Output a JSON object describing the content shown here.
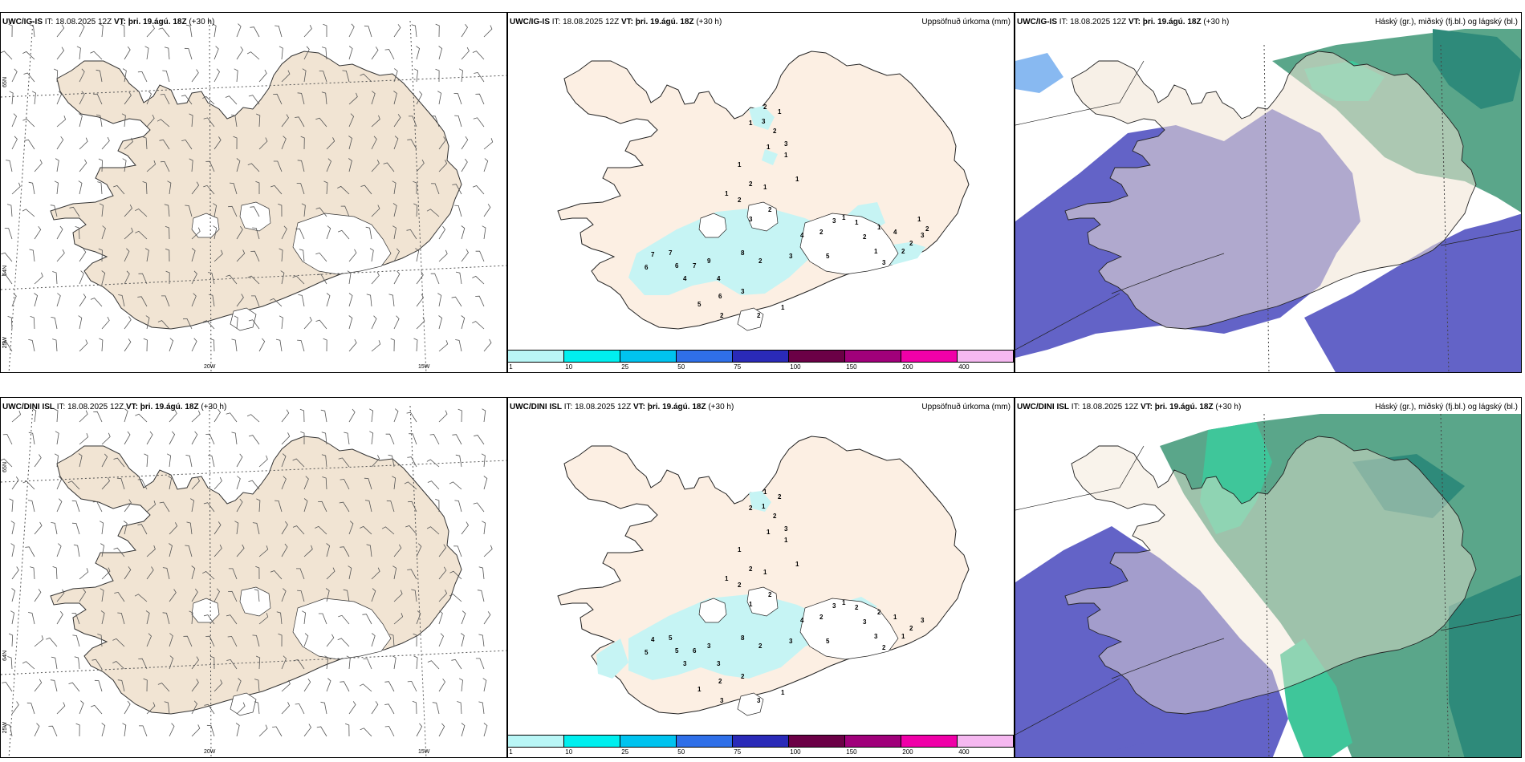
{
  "colors": {
    "land": "#f1e4d3",
    "land_precip": "#fcefe3",
    "precip_light": "#c6f4f4",
    "sea": "#ffffff",
    "cloud_high": "#3fc69a",
    "cloud_mid": "#5aa68a",
    "cloud_low": "#6363c7",
    "cloud_lowest": "#4848b8"
  },
  "rows": [
    {
      "model": "UWC/IG-IS",
      "it": "IT: 18.08.2025 12Z",
      "vt_label": "VT:",
      "vt": "þri. 19.ágú. 18Z",
      "lead": "(+30 h)",
      "precip_numbers": [
        "2",
        "1",
        "3",
        "1",
        "2",
        "1",
        "3",
        "1",
        "1",
        "1",
        "2",
        "1",
        "2",
        "3",
        "2",
        "1",
        "7",
        "6",
        "7",
        "9",
        "8",
        "2",
        "3",
        "4",
        "2",
        "3",
        "1",
        "5",
        "7",
        "6",
        "4",
        "4",
        "6",
        "5",
        "2",
        "3",
        "1",
        "2",
        "1",
        "4",
        "1",
        "2",
        "1",
        "3",
        "2",
        "2",
        "3",
        "1",
        "2"
      ]
    },
    {
      "model": "UWC/DINI ISL",
      "it": "IT: 18.08.2025 12Z",
      "vt_label": "VT:",
      "vt": "þri. 19.ágú. 18Z",
      "lead": "(+30 h)",
      "precip_numbers": [
        "1",
        "2",
        "1",
        "2",
        "2",
        "1",
        "3",
        "1",
        "1",
        "1",
        "2",
        "1",
        "2",
        "1",
        "2",
        "1",
        "5",
        "5",
        "6",
        "3",
        "8",
        "2",
        "3",
        "4",
        "2",
        "3",
        "1",
        "5",
        "4",
        "5",
        "3",
        "3",
        "2",
        "1",
        "3",
        "2",
        "1",
        "3",
        "2",
        "1",
        "2",
        "3",
        "3",
        "2",
        "1",
        "2",
        "3"
      ]
    }
  ],
  "precip_title": "Uppsöfnuð úrkoma (mm)",
  "cloud_title": "Háský (gr.), miðský (fj.bl.) og lágský (bl.)",
  "legend": {
    "ticks": [
      "1",
      "10",
      "25",
      "50",
      "75",
      "100",
      "150",
      "200",
      "400"
    ],
    "colors": [
      "#b9f6f6",
      "#00efef",
      "#00c3ef",
      "#2f6fe8",
      "#2a2ab8",
      "#6b0046",
      "#a0007a",
      "#f000a8",
      "#f5b8f0"
    ]
  },
  "lat_labels": [
    "65N",
    "64N"
  ],
  "lon_labels": [
    "25W",
    "20W",
    "15W"
  ]
}
